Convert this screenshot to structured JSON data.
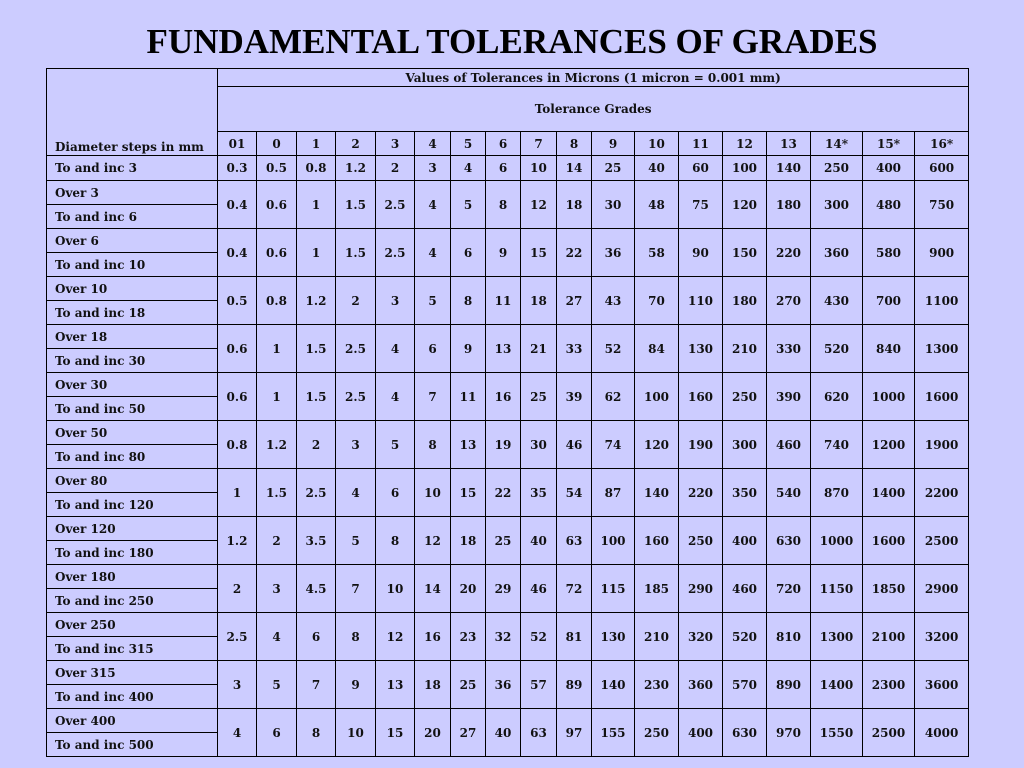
{
  "title": "FUNDAMENTAL TOLERANCES OF GRADES",
  "table": {
    "values_header": "Values of Tolerances in Microns (1 micron = 0.001 mm)",
    "grades_header": "Tolerance Grades",
    "diameter_header": "Diameter steps in mm",
    "grades": [
      "01",
      "0",
      "1",
      "2",
      "3",
      "4",
      "5",
      "6",
      "7",
      "8",
      "9",
      "10",
      "11",
      "12",
      "13",
      "14*",
      "15*",
      "16*"
    ],
    "first_row": {
      "label": "To and inc 3",
      "values": [
        0.3,
        0.5,
        0.8,
        1.2,
        2,
        3,
        4,
        6,
        10,
        14,
        25,
        40,
        60,
        100,
        140,
        250,
        400,
        600
      ]
    },
    "rows": [
      {
        "over": "Over 3",
        "to": "To and inc 6",
        "values": [
          0.4,
          0.6,
          1,
          1.5,
          2.5,
          4,
          5,
          8,
          12,
          18,
          30,
          48,
          75,
          120,
          180,
          300,
          480,
          750
        ]
      },
      {
        "over": "Over 6",
        "to": "To and inc 10",
        "values": [
          0.4,
          0.6,
          1,
          1.5,
          2.5,
          4,
          6,
          9,
          15,
          22,
          36,
          58,
          90,
          150,
          220,
          360,
          580,
          900
        ]
      },
      {
        "over": "Over 10",
        "to": "To and inc 18",
        "values": [
          0.5,
          0.8,
          1.2,
          2,
          3,
          5,
          8,
          11,
          18,
          27,
          43,
          70,
          110,
          180,
          270,
          430,
          700,
          1100
        ]
      },
      {
        "over": "Over 18",
        "to": "To and inc 30",
        "values": [
          0.6,
          1,
          1.5,
          2.5,
          4,
          6,
          9,
          13,
          21,
          33,
          52,
          84,
          130,
          210,
          330,
          520,
          840,
          1300
        ]
      },
      {
        "over": "Over 30",
        "to": "To and inc 50",
        "values": [
          0.6,
          1,
          1.5,
          2.5,
          4,
          7,
          11,
          16,
          25,
          39,
          62,
          100,
          160,
          250,
          390,
          620,
          1000,
          1600
        ]
      },
      {
        "over": "Over 50",
        "to": "To and inc 80",
        "values": [
          0.8,
          1.2,
          2,
          3,
          5,
          8,
          13,
          19,
          30,
          46,
          74,
          120,
          190,
          300,
          460,
          740,
          1200,
          1900
        ]
      },
      {
        "over": "Over 80",
        "to": "To and inc 120",
        "values": [
          1,
          1.5,
          2.5,
          4,
          6,
          10,
          15,
          22,
          35,
          54,
          87,
          140,
          220,
          350,
          540,
          870,
          1400,
          2200
        ]
      },
      {
        "over": "Over 120",
        "to": "To and inc 180",
        "values": [
          1.2,
          2,
          3.5,
          5,
          8,
          12,
          18,
          25,
          40,
          63,
          100,
          160,
          250,
          400,
          630,
          1000,
          1600,
          2500
        ]
      },
      {
        "over": "Over 180",
        "to": "To and inc 250",
        "values": [
          2,
          3,
          4.5,
          7,
          10,
          14,
          20,
          29,
          46,
          72,
          115,
          185,
          290,
          460,
          720,
          1150,
          1850,
          2900
        ]
      },
      {
        "over": "Over 250",
        "to": "To and inc 315",
        "values": [
          2.5,
          4,
          6,
          8,
          12,
          16,
          23,
          32,
          52,
          81,
          130,
          210,
          320,
          520,
          810,
          1300,
          2100,
          3200
        ]
      },
      {
        "over": "Over 315",
        "to": "To and inc 400",
        "values": [
          3,
          5,
          7,
          9,
          13,
          18,
          25,
          36,
          57,
          89,
          140,
          230,
          360,
          570,
          890,
          1400,
          2300,
          3600
        ]
      },
      {
        "over": "Over 400",
        "to": "To and inc 500",
        "values": [
          4,
          6,
          8,
          10,
          15,
          20,
          27,
          40,
          63,
          97,
          155,
          250,
          400,
          630,
          970,
          1550,
          2500,
          4000
        ]
      }
    ]
  }
}
